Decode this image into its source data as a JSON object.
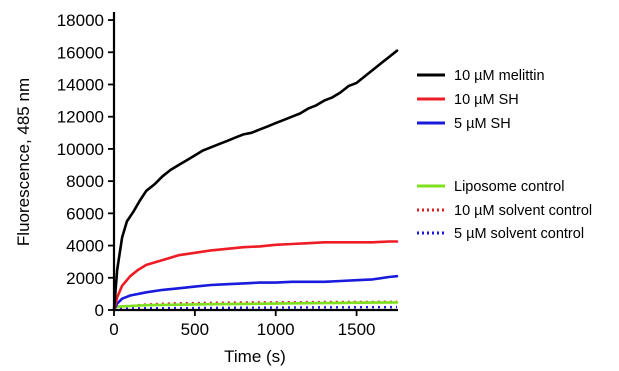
{
  "chart_data": {
    "type": "line",
    "xlabel": "Time (s)",
    "ylabel": "Fluorescence, 485 nm",
    "xlim": [
      0,
      1750
    ],
    "ylim": [
      0,
      18500
    ],
    "xticks": [
      0,
      500,
      1000,
      1500
    ],
    "yticks": [
      0,
      2000,
      4000,
      6000,
      8000,
      10000,
      12000,
      14000,
      16000,
      18000
    ],
    "grid": false,
    "legend_position": "right",
    "series": [
      {
        "name": "10 µM melittin",
        "color": "#000000",
        "style": "solid",
        "x": [
          0,
          20,
          50,
          80,
          120,
          160,
          200,
          250,
          300,
          350,
          400,
          450,
          500,
          550,
          600,
          650,
          700,
          750,
          800,
          850,
          900,
          950,
          1000,
          1050,
          1100,
          1150,
          1200,
          1250,
          1300,
          1350,
          1400,
          1450,
          1500,
          1550,
          1600,
          1650,
          1700,
          1750
        ],
        "y": [
          0,
          2500,
          4500,
          5500,
          6100,
          6800,
          7400,
          7800,
          8300,
          8700,
          9000,
          9300,
          9600,
          9900,
          10100,
          10300,
          10500,
          10700,
          10900,
          11000,
          11200,
          11400,
          11600,
          11800,
          12000,
          12200,
          12500,
          12700,
          13000,
          13200,
          13500,
          13900,
          14100,
          14500,
          14900,
          15300,
          15700,
          16100
        ]
      },
      {
        "name": "10 µM SH",
        "color": "#ee1c25",
        "style": "solid",
        "x": [
          0,
          20,
          50,
          100,
          150,
          200,
          300,
          400,
          500,
          600,
          700,
          800,
          900,
          1000,
          1100,
          1200,
          1300,
          1400,
          1500,
          1600,
          1700,
          1750
        ],
        "y": [
          0,
          800,
          1500,
          2100,
          2500,
          2800,
          3100,
          3400,
          3550,
          3700,
          3800,
          3900,
          3950,
          4050,
          4100,
          4150,
          4200,
          4200,
          4200,
          4200,
          4250,
          4250
        ]
      },
      {
        "name": "5 µM SH",
        "color": "#1a1adc",
        "style": "solid",
        "x": [
          0,
          20,
          50,
          100,
          200,
          300,
          400,
          500,
          600,
          700,
          800,
          900,
          1000,
          1100,
          1200,
          1300,
          1400,
          1500,
          1600,
          1700,
          1750
        ],
        "y": [
          0,
          400,
          700,
          900,
          1100,
          1250,
          1350,
          1450,
          1550,
          1600,
          1650,
          1700,
          1700,
          1750,
          1750,
          1750,
          1800,
          1850,
          1900,
          2050,
          2100
        ]
      },
      {
        "name": "Liposome control",
        "color": "#7fe01e",
        "style": "solid",
        "x": [
          0,
          100,
          200,
          400,
          600,
          800,
          1000,
          1200,
          1400,
          1600,
          1750
        ],
        "y": [
          200,
          250,
          300,
          330,
          360,
          380,
          400,
          420,
          440,
          460,
          470
        ]
      },
      {
        "name": "10 µM solvent control",
        "color": "#d42020",
        "style": "dotted",
        "x": [
          0,
          100,
          200,
          400,
          600,
          800,
          1000,
          1200,
          1400,
          1600,
          1750
        ],
        "y": [
          150,
          250,
          350,
          420,
          450,
          470,
          480,
          490,
          500,
          500,
          510
        ]
      },
      {
        "name": "5 µM solvent control",
        "color": "#1a1adc",
        "style": "dotted",
        "x": [
          0,
          100,
          200,
          400,
          600,
          800,
          1000,
          1200,
          1400,
          1600,
          1750
        ],
        "y": [
          80,
          100,
          110,
          120,
          130,
          140,
          150,
          160,
          170,
          175,
          180
        ]
      }
    ]
  }
}
